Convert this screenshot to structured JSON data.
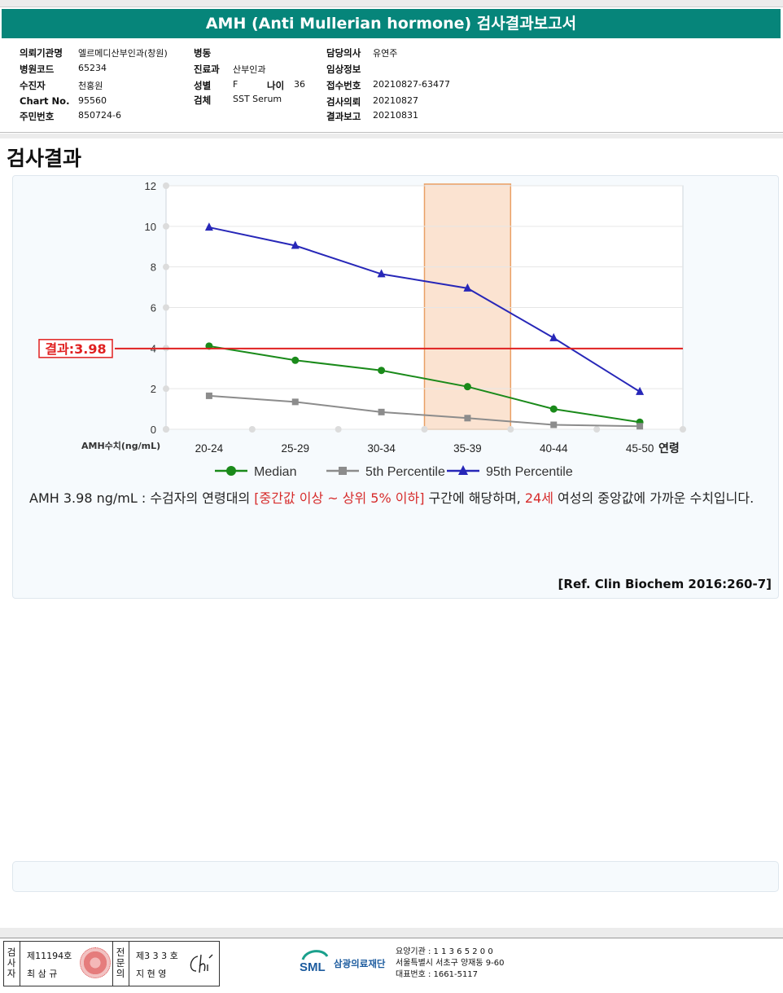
{
  "header": {
    "title": "AMH (Anti Mullerian hormone) 검사결과보고서"
  },
  "info": {
    "col1": [
      {
        "label": "의뢰기관명",
        "value": "엘르메디산부인과(창원)"
      },
      {
        "label": "병원코드",
        "value": "65234"
      },
      {
        "label": "수진자",
        "value": "천홍원"
      },
      {
        "label": "Chart No.",
        "value": "95560"
      },
      {
        "label": "주민번호",
        "value": "850724-6"
      }
    ],
    "col2": [
      {
        "label": "병동",
        "value": ""
      },
      {
        "label": "진료과",
        "value": "산부인과"
      },
      {
        "label": "성별",
        "value": "F"
      },
      {
        "label": "검체",
        "value": "SST Serum"
      }
    ],
    "age": {
      "label": "나이",
      "value": "36"
    },
    "col3": [
      {
        "label": "담당의사",
        "value": "유연주"
      },
      {
        "label": "임상정보",
        "value": ""
      },
      {
        "label": "접수번호",
        "value": "20210827-63477"
      },
      {
        "label": "검사의뢰",
        "value": "20210827"
      },
      {
        "label": "결과보고",
        "value": "20210831"
      }
    ]
  },
  "section_title": "검사결과",
  "chart_data": {
    "type": "line",
    "categories": [
      "20-24",
      "25-29",
      "30-34",
      "35-39",
      "40-44",
      "45-50"
    ],
    "xlabel": "연령",
    "ylabel": "AMH수치(ng/mL)",
    "ylim": [
      0,
      12
    ],
    "yticks": [
      0,
      2,
      4,
      6,
      8,
      10,
      12
    ],
    "series": [
      {
        "name": "Median",
        "color": "#1a8a1a",
        "marker": "circle",
        "values": [
          4.1,
          3.4,
          2.9,
          2.1,
          1.0,
          0.35
        ]
      },
      {
        "name": "5th Percentile",
        "color": "#8c8c8c",
        "marker": "square",
        "values": [
          1.65,
          1.35,
          0.85,
          0.55,
          0.22,
          0.15
        ]
      },
      {
        "name": "95th Percentile",
        "color": "#2727b8",
        "marker": "triangle",
        "values": [
          9.95,
          9.05,
          7.65,
          6.95,
          4.5,
          1.85
        ]
      }
    ],
    "result": {
      "label": "결과:3.98",
      "value": 3.98,
      "color": "#e02020"
    },
    "highlight_category": "35-39",
    "grid": true,
    "legend_position": "bottom"
  },
  "description": {
    "p1": "AMH  3.98 ng/mL : 수검자의 연령대의 ",
    "p2": "[중간값 이상 ~ 상위 5% 이하]",
    "p3": "  구간에 해당하며, ",
    "p4": "24세",
    "p5": " 여성의 중앙값에 가까운 수치입니다."
  },
  "reference": "[Ref. Clin Biochem 2016:260-7]",
  "footer": {
    "inspector_label": "검사자",
    "inspector_no": "제11194호",
    "inspector_name": "최 삼 규",
    "specialist_label": "전문의",
    "specialist_no": "제3 3 3 호",
    "specialist_name": "지 현 영",
    "signature": "Ch",
    "org_logo": "SML",
    "org_name": "삼광의료재단",
    "org_code": "요양기관 : 1 1 3 6 5 2 0 0",
    "org_address": "서울특별시 서초구 양재동 9-60",
    "org_phone": "대표번호 : 1661-5117"
  }
}
